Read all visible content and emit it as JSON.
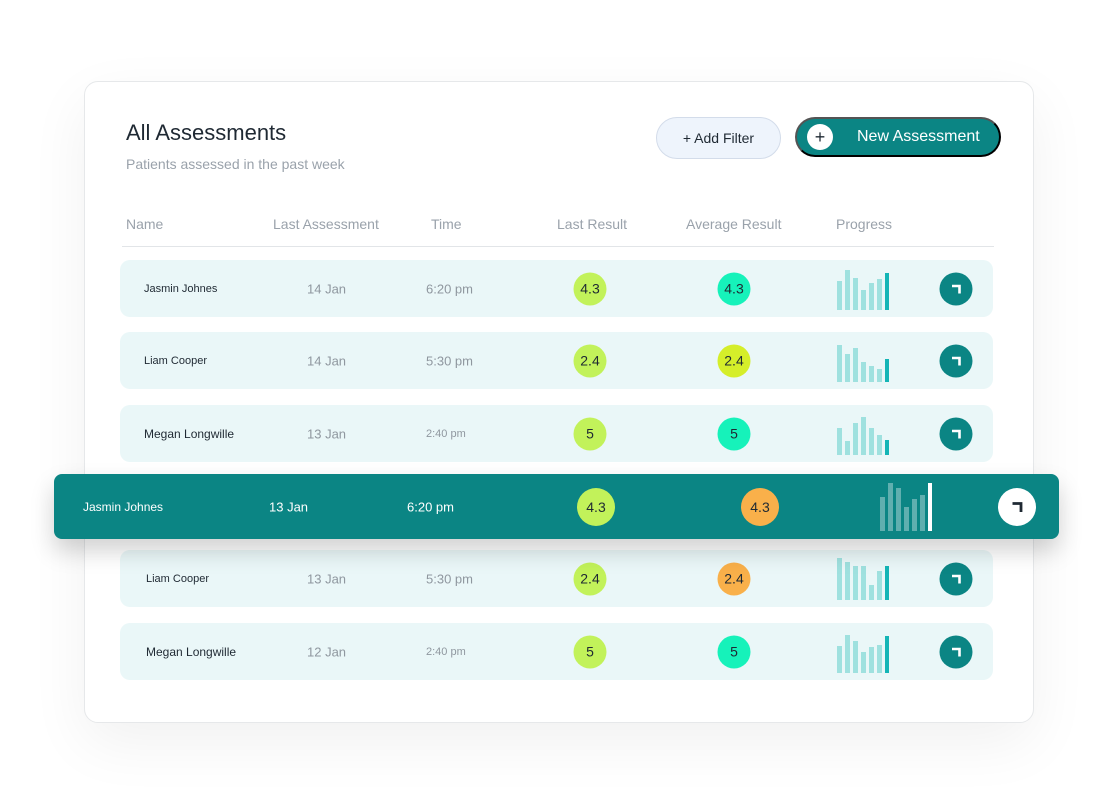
{
  "header": {
    "title": "All Assessments",
    "subtitle": "Patients assessed in the past week",
    "add_filter_label": "+ Add Filter",
    "new_assessment_plus": "+",
    "new_assessment_label": "New Assessment"
  },
  "columns": [
    "Name",
    "Last Assessment",
    "Time",
    "Last Result",
    "Average Result",
    "Progress"
  ],
  "colors": {
    "teal": "#0b8584",
    "lime": "#c2f25a",
    "yellow_green": "#d5ee2a",
    "aqua": "#16f2ba",
    "orange": "#f9b04a",
    "row_bg": "#eaf7f8",
    "bar_light": "#9fe1df",
    "bar_dark": "#14b5b6"
  },
  "rows": [
    {
      "name": "Jasmin Johnes",
      "date": "14 Jan",
      "time": "6:20 pm",
      "last_result": "4.3",
      "last_color": "lime",
      "avg_result": "4.3",
      "avg_color": "aqua",
      "progress": [
        0.68,
        0.95,
        0.77,
        0.48,
        0.64,
        0.73,
        0.89
      ]
    },
    {
      "name": "Liam Cooper",
      "date": "14 Jan",
      "time": "5:30 pm",
      "last_result": "2.4",
      "last_color": "lime",
      "avg_result": "2.4",
      "avg_color": "yellow_green",
      "progress": [
        0.89,
        0.66,
        0.82,
        0.48,
        0.39,
        0.3,
        0.55
      ]
    },
    {
      "name": "Megan Longwille",
      "date": "13 Jan",
      "time": "2:40 pm",
      "last_result": "5",
      "last_color": "lime",
      "avg_result": "5",
      "avg_color": "aqua",
      "progress": [
        0.64,
        0.34,
        0.77,
        0.91,
        0.64,
        0.48,
        0.36
      ]
    },
    {
      "name": "Jasmin Johnes",
      "date": "13 Jan",
      "time": "6:20 pm",
      "last_result": "4.3",
      "last_color": "lime",
      "avg_result": "4.3",
      "avg_color": "orange",
      "progress": [
        0.7,
        1.0,
        0.89,
        0.51,
        0.66,
        0.74,
        1.0
      ]
    },
    {
      "name": "Liam Cooper",
      "date": "13 Jan",
      "time": "5:30 pm",
      "last_result": "2.4",
      "last_color": "lime",
      "avg_result": "2.4",
      "avg_color": "orange",
      "progress": [
        1.0,
        0.91,
        0.8,
        0.82,
        0.36,
        0.7,
        0.82
      ]
    },
    {
      "name": "Megan Longwille",
      "date": "12 Jan",
      "time": "2:40 pm",
      "last_result": "5",
      "last_color": "lime",
      "avg_result": "5",
      "avg_color": "aqua",
      "progress": [
        0.64,
        0.91,
        0.77,
        0.5,
        0.62,
        0.66,
        0.89
      ]
    }
  ]
}
